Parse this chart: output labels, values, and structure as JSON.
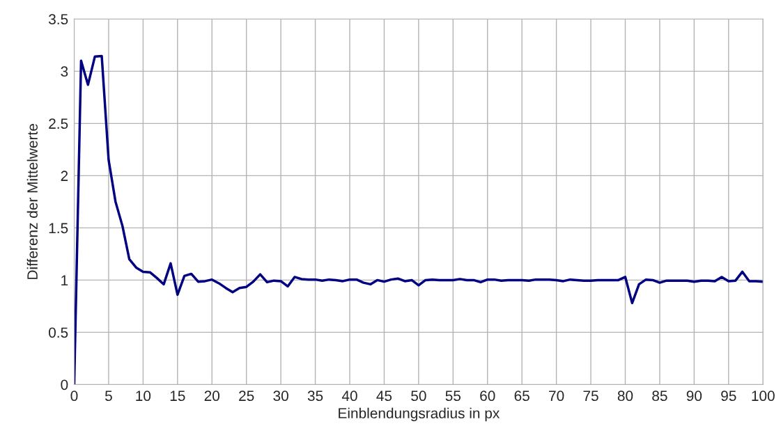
{
  "chart_data": {
    "type": "line",
    "xlabel": "Einblendungsradius in px",
    "ylabel": "Differenz der Mittelwerte",
    "x": [
      0,
      1,
      2,
      3,
      4,
      5,
      6,
      7,
      8,
      9,
      10,
      11,
      12,
      13,
      14,
      15,
      16,
      17,
      18,
      19,
      20,
      21,
      22,
      23,
      24,
      25,
      26,
      27,
      28,
      29,
      30,
      31,
      32,
      33,
      34,
      35,
      36,
      37,
      38,
      39,
      40,
      41,
      42,
      43,
      44,
      45,
      46,
      47,
      48,
      49,
      50,
      51,
      52,
      53,
      54,
      55,
      56,
      57,
      58,
      59,
      60,
      61,
      62,
      63,
      64,
      65,
      66,
      67,
      68,
      69,
      70,
      71,
      72,
      73,
      74,
      75,
      76,
      77,
      78,
      79,
      80,
      81,
      82,
      83,
      84,
      85,
      86,
      87,
      88,
      89,
      90,
      91,
      92,
      93,
      94,
      95,
      96,
      97,
      98,
      99,
      100
    ],
    "series": [
      {
        "color": "#000080",
        "values": [
          0,
          3.1,
          2.87,
          3.14,
          3.145,
          2.15,
          1.75,
          1.52,
          1.2,
          1.12,
          1.08,
          1.075,
          1.02,
          0.96,
          1.16,
          0.86,
          1.04,
          1.06,
          0.985,
          0.99,
          1.005,
          0.97,
          0.925,
          0.885,
          0.925,
          0.935,
          0.985,
          1.055,
          0.98,
          0.995,
          0.99,
          0.94,
          1.03,
          1.01,
          1.005,
          1.005,
          0.995,
          1.005,
          1.0,
          0.99,
          1.005,
          1.005,
          0.975,
          0.96,
          1.0,
          0.985,
          1.005,
          1.015,
          0.99,
          1.0,
          0.95,
          1.0,
          1.005,
          1.0,
          1.0,
          1.0,
          1.01,
          1.0,
          1.0,
          0.98,
          1.005,
          1.005,
          0.995,
          1.0,
          1.0,
          1.0,
          0.995,
          1.005,
          1.005,
          1.005,
          1.0,
          0.99,
          1.005,
          1.0,
          0.995,
          0.995,
          1.0,
          1.0,
          1.0,
          1.0,
          1.03,
          0.78,
          0.96,
          1.005,
          1.0,
          0.975,
          0.995,
          0.995,
          0.995,
          0.995,
          0.985,
          0.995,
          0.995,
          0.99,
          1.03,
          0.99,
          0.995,
          1.08,
          0.99,
          0.99,
          0.985
        ]
      }
    ],
    "xlim": [
      0,
      100
    ],
    "xticks": [
      0,
      5,
      10,
      15,
      20,
      25,
      30,
      35,
      40,
      45,
      50,
      55,
      60,
      65,
      70,
      75,
      80,
      85,
      90,
      95,
      100
    ],
    "ylim": [
      0,
      3.5
    ],
    "yticks": [
      0,
      0.5,
      1,
      1.5,
      2,
      2.5,
      3,
      3.5
    ],
    "grid": true,
    "marker": "none",
    "line_style": "solid"
  }
}
